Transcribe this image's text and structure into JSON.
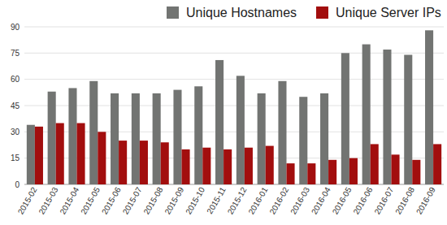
{
  "chart_data": {
    "type": "bar",
    "categories": [
      "2015-02",
      "2015-03",
      "2015-04",
      "2015-05",
      "2015-06",
      "2015-07",
      "2015-08",
      "2015-09",
      "2015-10",
      "2015-11",
      "2015-12",
      "2016-01",
      "2016-02",
      "2016-03",
      "2016-04",
      "2016-05",
      "2016-06",
      "2016-07",
      "2016-08",
      "2016-09"
    ],
    "series": [
      {
        "name": "Unique Hostnames",
        "color": "#727472",
        "values": [
          34,
          53,
          55,
          59,
          52,
          52,
          52,
          54,
          56,
          71,
          62,
          52,
          59,
          50,
          52,
          75,
          80,
          77,
          74,
          88
        ]
      },
      {
        "name": "Unique Server IPs",
        "color": "#a20e0e",
        "values": [
          33,
          35,
          35,
          30,
          25,
          25,
          24,
          20,
          21,
          20,
          21,
          22,
          12,
          12,
          14,
          15,
          23,
          17,
          14,
          23
        ]
      }
    ],
    "ylim": [
      0,
      90
    ],
    "yticks": [
      0,
      15,
      30,
      45,
      60,
      75,
      90
    ],
    "grid": true,
    "legend": "top"
  }
}
